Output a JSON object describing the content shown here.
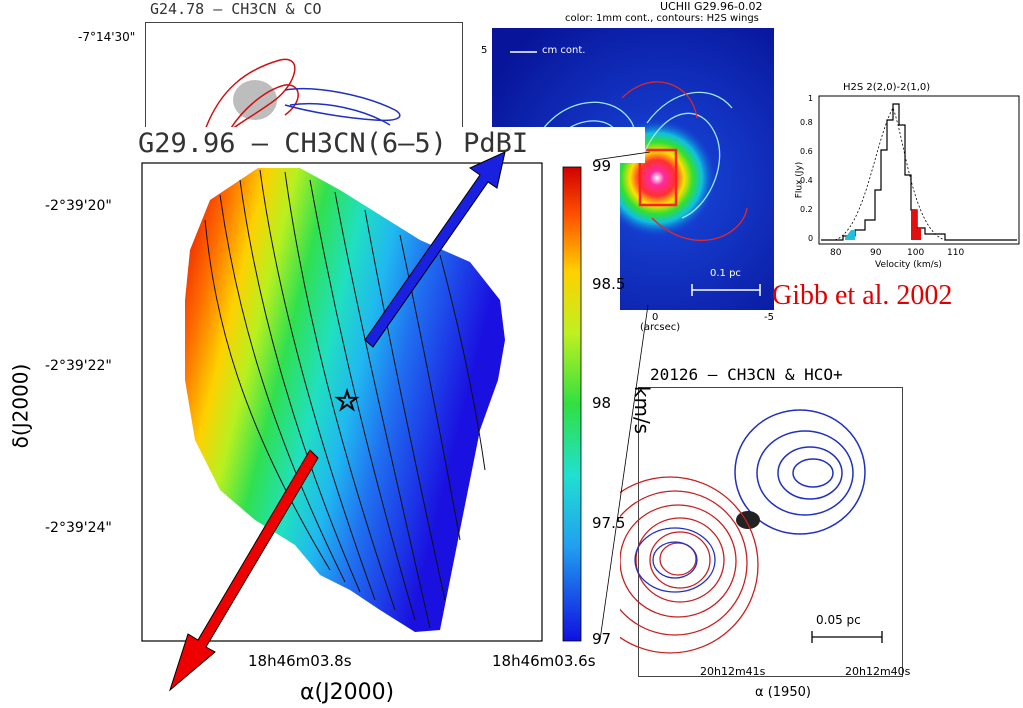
{
  "panel_g24": {
    "title": "G24.78 – CH3CN & CO",
    "dec_tick": "-7°14'30\""
  },
  "panel_uchii": {
    "title": "UCHII G29.96-0.02",
    "subtitle": "color: 1mm cont., contours: H2S wings",
    "legend": "cm cont.",
    "tick_5": "5",
    "tick_0": "0",
    "tick_m5": "-5",
    "axis_unit": "(arcsec)",
    "scalebar": "0.1 pc"
  },
  "panel_h2s": {
    "title": "H2S 2(2,0)-2(1,0)",
    "ylabel": "Flux (Jy)",
    "xlabel": "Velocity (km/s)",
    "xticks": [
      "80",
      "90",
      "100",
      "110"
    ],
    "yticks": [
      "0",
      "0.2",
      "0.4",
      "0.6",
      "0.8",
      "1"
    ]
  },
  "citation": "Gibb et al. 2002",
  "panel_20126": {
    "title": "20126 – CH3CN & HCO+",
    "xtick_1": "20h12m41s",
    "xtick_2": "20h12m40s",
    "xlabel": "α (1950)",
    "scalebar": "0.05 pc"
  },
  "main_map": {
    "title": "G29.96 – CH3CN(6–5) PdBI",
    "dec_ticks": [
      "-2°39'20\"",
      "-2°39'22\"",
      "-2°39'24\""
    ],
    "ra_tick_1": "18h46m03.8s",
    "ra_tick_2": "18h46m03.6s",
    "xlabel": "α(J2000)",
    "ylabel": "δ(J2000)",
    "colorbar_ticks": [
      "99",
      "98.5",
      "98",
      "97.5",
      "97"
    ],
    "colorbar_unit": "km/s"
  },
  "colors": {
    "red_lobe": "#e00000",
    "blue_lobe": "#1428d8",
    "citation": "#e00000"
  },
  "chart_data": {
    "type": "heatmap",
    "title": "G29.96 – CH3CN(6–5) PdBI",
    "xlabel": "α(J2000)",
    "ylabel": "δ(J2000)",
    "colorbar_label": "km/s",
    "colorbar_range": [
      97,
      99
    ],
    "colorbar_ticks": [
      97,
      97.5,
      98,
      98.5,
      99
    ],
    "gradient": "velocity increases from upper-right (97 km/s, blue) to lower-left (99 km/s, red)"
  }
}
